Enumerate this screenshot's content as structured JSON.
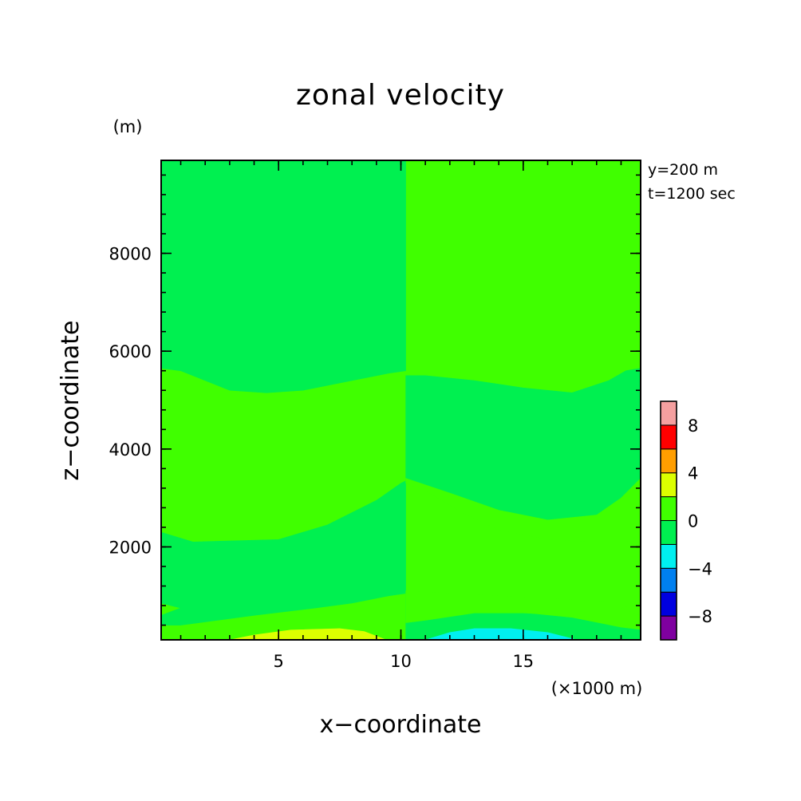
{
  "chart_data": {
    "type": "heatmap",
    "title": "zonal velocity",
    "xlabel": "x−coordinate",
    "ylabel": "z−coordinate",
    "x_unit": "(×1000 m)",
    "y_unit": "(m)",
    "annotations": [
      "y=200 m",
      "t=1200 sec"
    ],
    "xlim": [
      0.2,
      19.8
    ],
    "ylim": [
      100,
      9900
    ],
    "x_ticks": [
      5,
      10,
      15
    ],
    "y_ticks": [
      2000,
      4000,
      6000,
      8000
    ],
    "x_tick_labels": [
      "5",
      "10",
      "15"
    ],
    "y_tick_labels": [
      "2000",
      "4000",
      "6000",
      "8000"
    ],
    "x_minor_step": 1,
    "y_minor_step": 400,
    "grid": false,
    "colorbar": {
      "boundaries": [
        -10,
        -8,
        -6,
        -4,
        -2,
        0,
        2,
        4,
        6,
        8,
        10
      ],
      "tick_values": [
        -8,
        -4,
        0,
        4,
        8
      ],
      "tick_labels": [
        "−8",
        "−4",
        "0",
        "4",
        "8"
      ],
      "colors": [
        "#7f00a0",
        "#0000e0",
        "#0080f0",
        "#00f0f0",
        "#00f050",
        "#40ff00",
        "#dcff00",
        "#ff9e00",
        "#ff0000",
        "#f5a0a0"
      ]
    },
    "regions": [
      {
        "name": "background",
        "level": "0 to 2",
        "color": "#40ff00",
        "polygon": [
          [
            0.2,
            100
          ],
          [
            19.8,
            100
          ],
          [
            19.8,
            9900
          ],
          [
            0.2,
            9900
          ]
        ]
      },
      {
        "name": "upper band left",
        "level": "-2 to 0",
        "color": "#00f050",
        "polygon": [
          [
            0.2,
            9900
          ],
          [
            10.2,
            9900
          ],
          [
            10.2,
            5600
          ],
          [
            9.5,
            5550
          ],
          [
            8,
            5400
          ],
          [
            6,
            5200
          ],
          [
            4.5,
            5150
          ],
          [
            3,
            5200
          ],
          [
            1,
            5600
          ],
          [
            0.2,
            5650
          ]
        ]
      },
      {
        "name": "upper band right",
        "level": "-2 to 0",
        "color": "#00f050",
        "polygon": [
          [
            10.2,
            5500
          ],
          [
            11,
            5500
          ],
          [
            13,
            5400
          ],
          [
            15,
            5250
          ],
          [
            17,
            5150
          ],
          [
            18.5,
            5400
          ],
          [
            19.2,
            5600
          ],
          [
            19.8,
            5650
          ],
          [
            19.8,
            3400
          ],
          [
            19,
            3000
          ],
          [
            18,
            2650
          ],
          [
            16,
            2550
          ],
          [
            14,
            2750
          ],
          [
            12,
            3100
          ],
          [
            10.2,
            3350
          ]
        ]
      },
      {
        "name": "middle band left",
        "level": "-2 to 0",
        "color": "#00f050",
        "polygon": [
          [
            0.2,
            2300
          ],
          [
            1.5,
            2100
          ],
          [
            5,
            2150
          ],
          [
            7,
            2450
          ],
          [
            9,
            2950
          ],
          [
            10,
            3300
          ],
          [
            10.2,
            3350
          ],
          [
            10.2,
            1050
          ],
          [
            9.5,
            1000
          ],
          [
            8,
            850
          ],
          [
            6.5,
            750
          ],
          [
            4,
            600
          ],
          [
            1,
            400
          ],
          [
            0.2,
            400
          ],
          [
            0.2,
            600
          ],
          [
            1,
            750
          ],
          [
            0.2,
            850
          ]
        ]
      },
      {
        "name": "middle band right",
        "level": "-2 to 0",
        "color": "#00f050",
        "polygon": [
          [
            10.2,
            1100
          ],
          [
            11,
            1000
          ],
          [
            12,
            850
          ],
          [
            14,
            700
          ],
          [
            17,
            550
          ],
          [
            19,
            350
          ],
          [
            19.8,
            300
          ],
          [
            19.8,
            100
          ],
          [
            10.2,
            100
          ],
          [
            10.2,
            1100
          ]
        ]
      },
      {
        "name": "lower right wedge",
        "level": "0 to 2",
        "color": "#40ff00",
        "polygon": [
          [
            19.8,
            2250
          ],
          [
            19.2,
            2100
          ],
          [
            18,
            2100
          ],
          [
            16,
            2150
          ],
          [
            14,
            2350
          ],
          [
            12.5,
            2700
          ],
          [
            11,
            3150
          ],
          [
            10.2,
            3300
          ],
          [
            10.2,
            3400
          ],
          [
            12,
            3100
          ],
          [
            14,
            2750
          ],
          [
            16,
            2550
          ],
          [
            18,
            2650
          ],
          [
            19,
            3000
          ],
          [
            19.8,
            3400
          ]
        ]
      },
      {
        "name": "lower right strip",
        "level": "0 to 2",
        "color": "#40ff00",
        "polygon": [
          [
            19.8,
            850
          ],
          [
            19,
            750
          ],
          [
            19.8,
            600
          ],
          [
            19.8,
            350
          ],
          [
            19,
            400
          ],
          [
            17,
            600
          ],
          [
            15,
            650
          ],
          [
            13,
            650
          ],
          [
            11,
            500
          ],
          [
            10.2,
            450
          ],
          [
            10.2,
            1100
          ]
        ]
      },
      {
        "name": "positive lobe",
        "level": "2 to 4",
        "color": "#dcff00",
        "polygon": [
          [
            3,
            100
          ],
          [
            4,
            200
          ],
          [
            5.5,
            300
          ],
          [
            7.5,
            330
          ],
          [
            8.5,
            270
          ],
          [
            9.4,
            100
          ]
        ]
      },
      {
        "name": "negative lobe",
        "level": "-4 to -2",
        "color": "#00f0f0",
        "polygon": [
          [
            11,
            100
          ],
          [
            12,
            250
          ],
          [
            13,
            330
          ],
          [
            14.5,
            330
          ],
          [
            16,
            250
          ],
          [
            17.2,
            100
          ]
        ]
      }
    ]
  }
}
